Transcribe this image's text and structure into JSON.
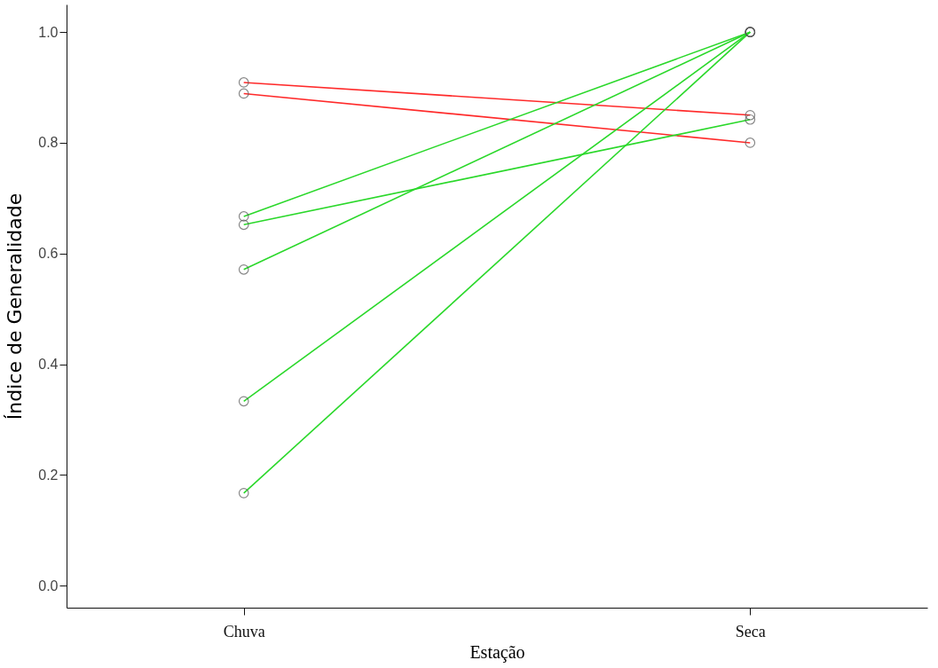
{
  "chart_data": {
    "type": "line",
    "xlabel": "Estação",
    "ylabel": "Índice de Generalidade",
    "categories": [
      "Chuva",
      "Seca"
    ],
    "series": [
      {
        "color": "#ff2a2a",
        "values": [
          0.909,
          0.85
        ]
      },
      {
        "color": "#ff2a2a",
        "values": [
          0.889,
          0.8
        ]
      },
      {
        "color": "#2ad82a",
        "values": [
          0.667,
          1.0
        ]
      },
      {
        "color": "#2ad82a",
        "values": [
          0.652,
          0.842
        ]
      },
      {
        "color": "#2ad82a",
        "values": [
          0.571,
          1.0
        ]
      },
      {
        "color": "#2ad82a",
        "values": [
          0.333,
          1.0
        ]
      },
      {
        "color": "#2ad82a",
        "values": [
          0.167,
          1.0
        ]
      }
    ],
    "ylim": [
      -0.04,
      1.05
    ],
    "yticks": [
      {
        "value": 0,
        "label": "0.0"
      },
      {
        "value": 0.2,
        "label": "0.2"
      },
      {
        "value": 0.4,
        "label": "0.4"
      },
      {
        "value": 0.6,
        "label": "0.6"
      },
      {
        "value": 0.8,
        "label": "0.8"
      },
      {
        "value": 1,
        "label": "1.0"
      }
    ],
    "grid": false,
    "marker": "circle",
    "line_style": "solid"
  }
}
